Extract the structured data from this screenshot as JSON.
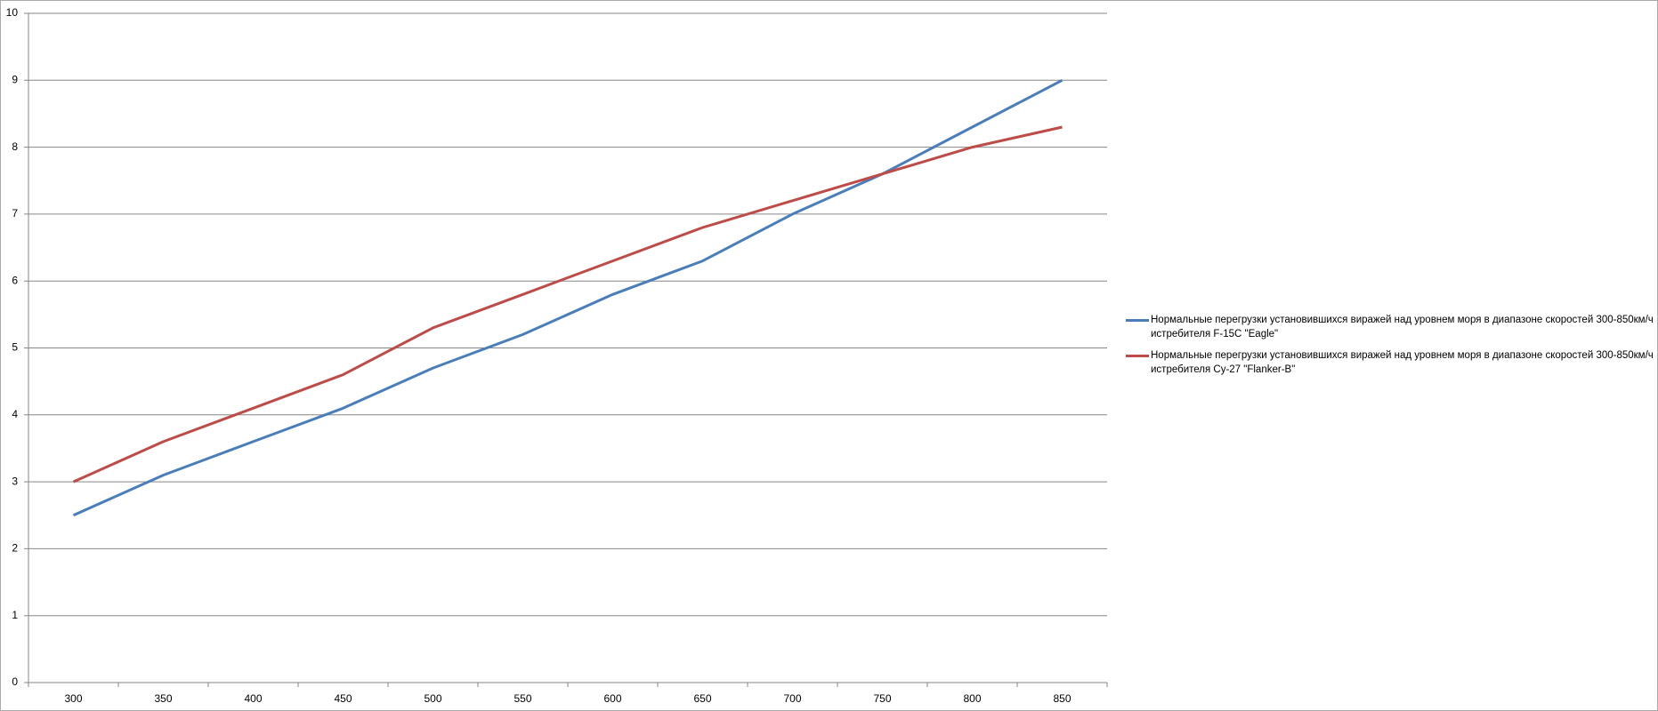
{
  "chart_data": {
    "type": "line",
    "categories": [
      "300",
      "350",
      "400",
      "450",
      "500",
      "550",
      "600",
      "650",
      "700",
      "750",
      "800",
      "850"
    ],
    "series": [
      {
        "name": "Нормальные перегрузки установившихся виражей над уровнем моря в диапазоне скоростей 300-850км/ч истребителя F-15C \"Eagle\"",
        "color": "#4a7ebb",
        "values": [
          2.5,
          3.1,
          3.6,
          4.1,
          4.7,
          5.2,
          5.8,
          6.3,
          7.0,
          7.6,
          8.3,
          9.0
        ]
      },
      {
        "name": "Нормальные перегрузки установившихся виражей над уровнем моря в диапазоне скоростей 300-850км/ч истребителя Су-27 \"Flanker-B\"",
        "color": "#be4b48",
        "values": [
          3.0,
          3.6,
          4.1,
          4.6,
          5.3,
          5.8,
          6.3,
          6.8,
          7.2,
          7.6,
          8.0,
          8.3
        ]
      }
    ],
    "ylim": [
      0,
      10
    ],
    "yticks": [
      0,
      1,
      2,
      3,
      4,
      5,
      6,
      7,
      8,
      9,
      10
    ],
    "grid": true,
    "legend": "right"
  }
}
